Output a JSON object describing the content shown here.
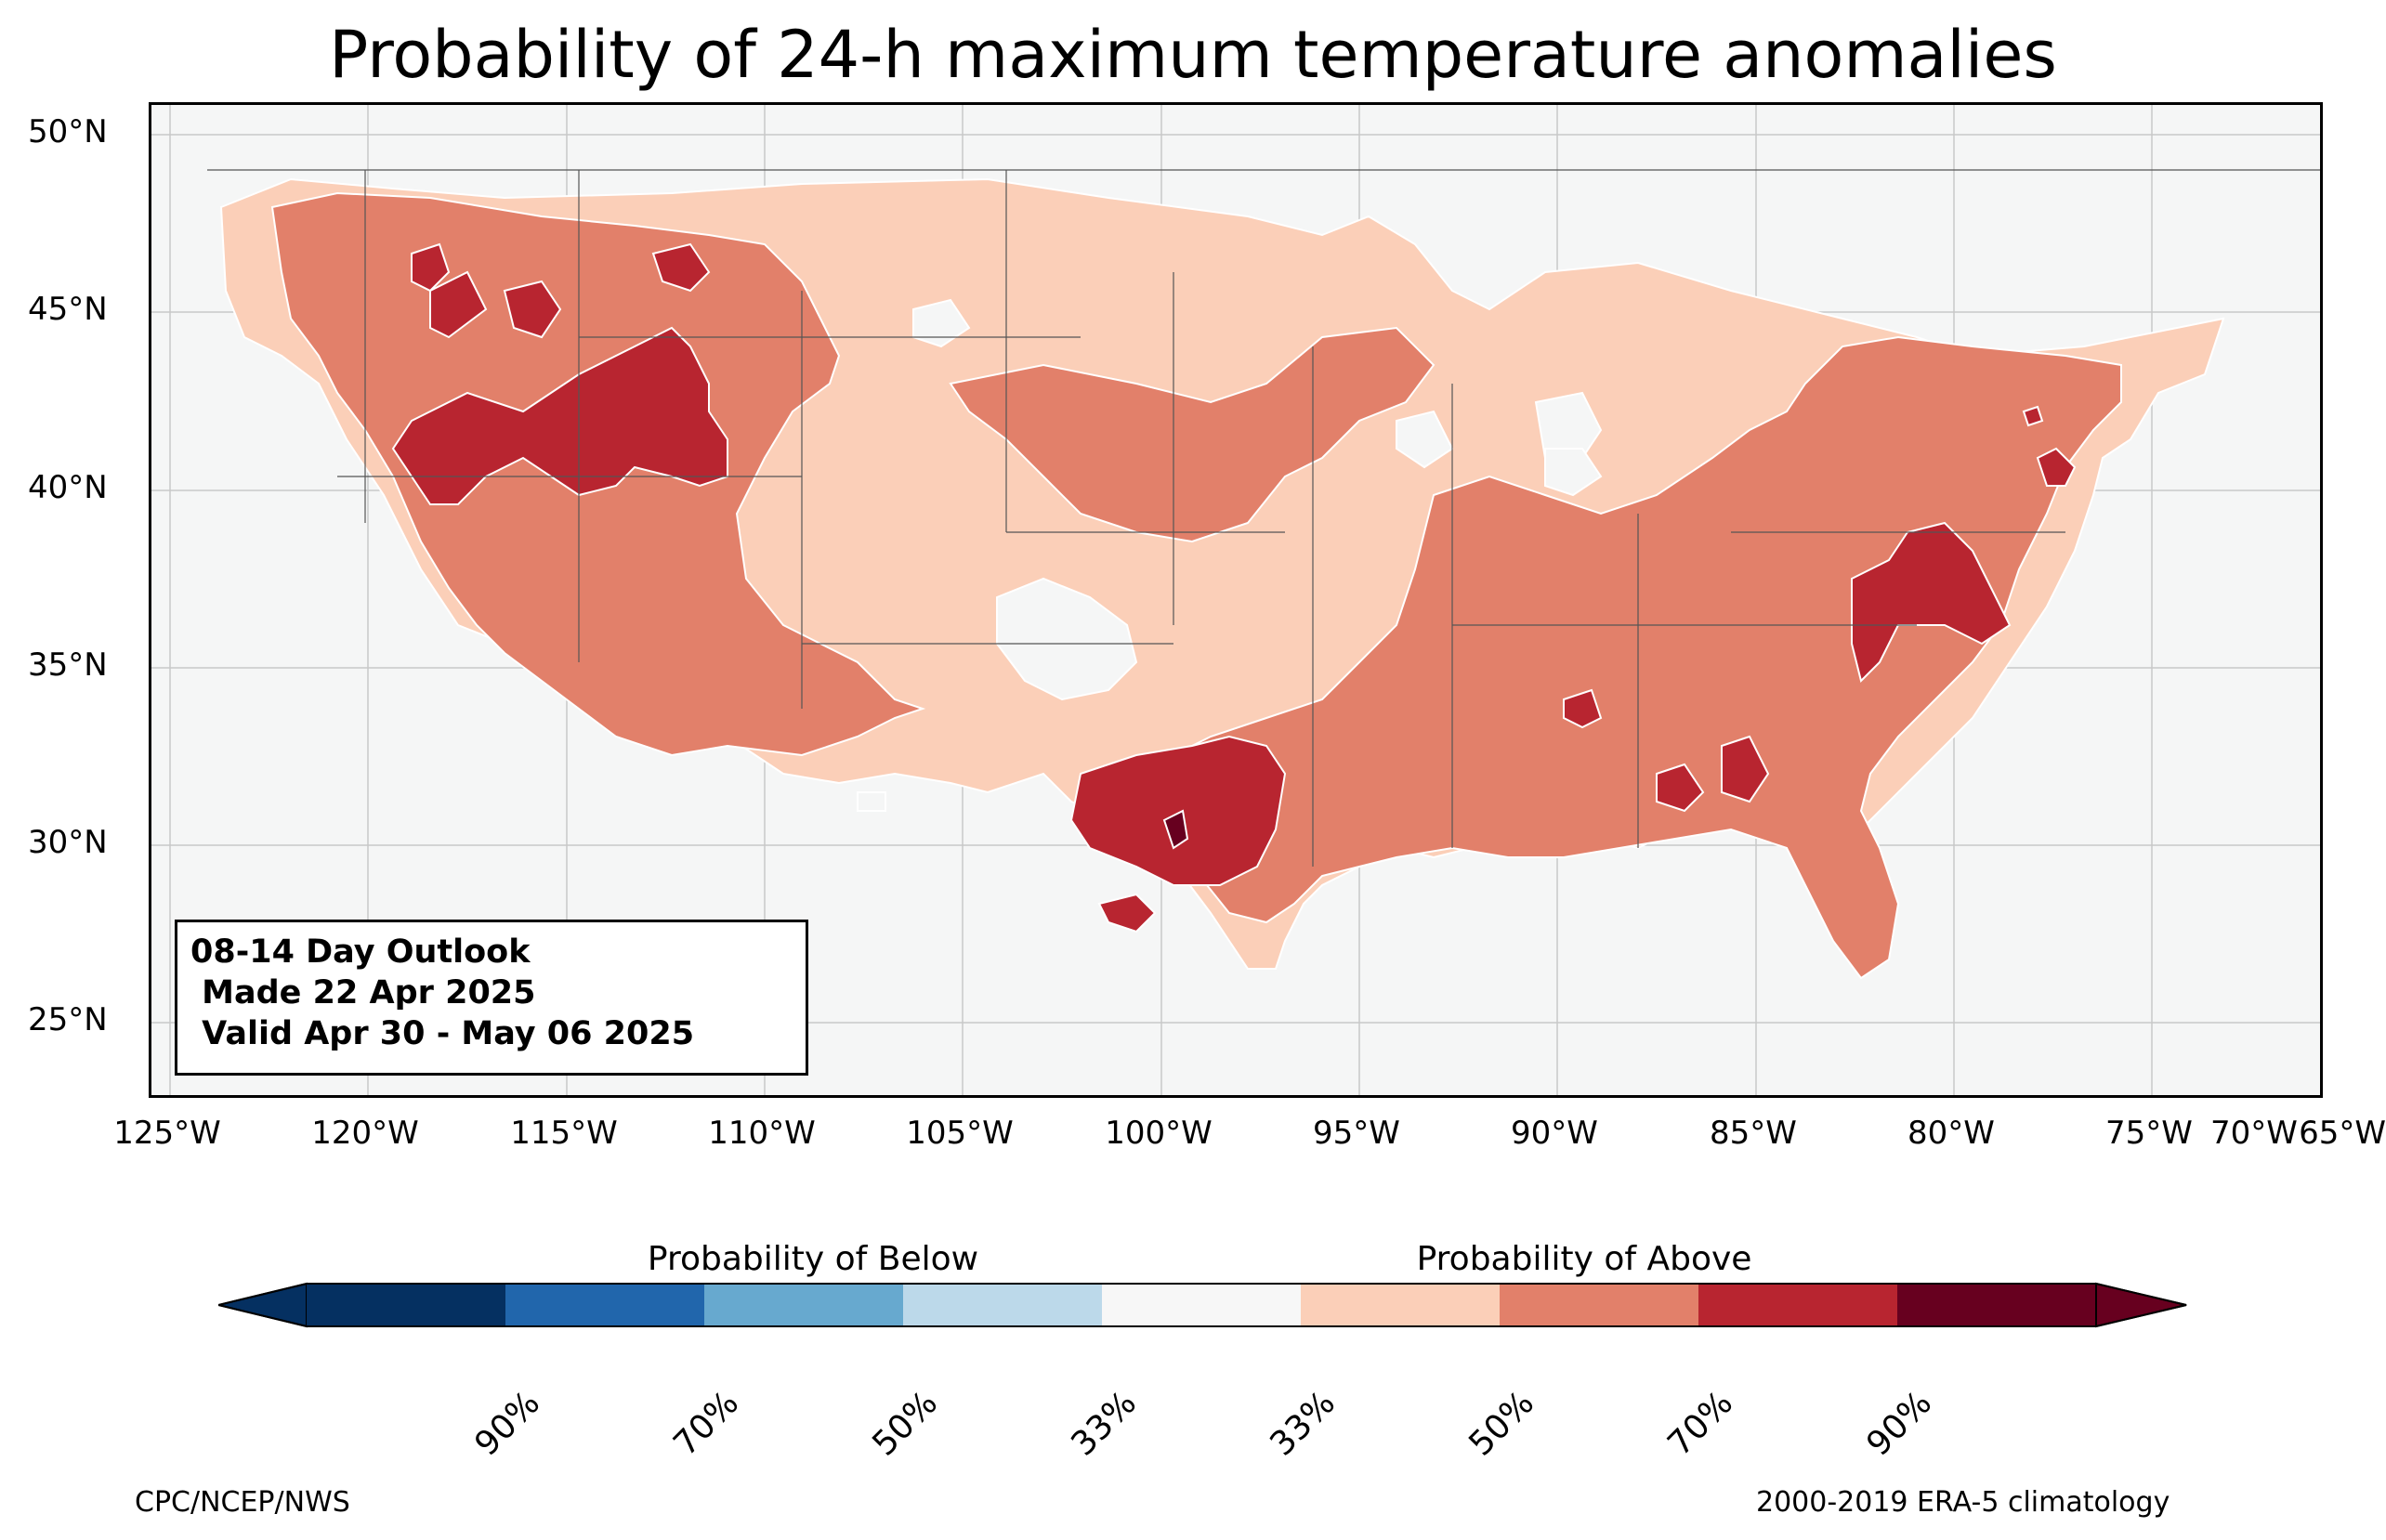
{
  "title": "Probability of 24-h maximum temperature anomalies",
  "outlook": {
    "line1": "08-14 Day Outlook",
    "line2": " Made 22 Apr 2025",
    "line3": " Valid Apr 30 - May 06 2025"
  },
  "lat_labels": [
    "50°N",
    "45°N",
    "40°N",
    "35°N",
    "30°N",
    "25°N"
  ],
  "lon_labels": [
    "125°W",
    "120°W",
    "115°W",
    "110°W",
    "105°W",
    "100°W",
    "95°W",
    "90°W",
    "85°W",
    "80°W",
    "75°W",
    "70°W",
    "65°W"
  ],
  "colorbar": {
    "below_title": "Probability of Below",
    "above_title": "Probability of Above",
    "ticks": [
      "90%",
      "70%",
      "50%",
      "33%",
      "33%",
      "50%",
      "70%",
      "90%"
    ],
    "colors": {
      "below_90": "#053061",
      "below_70": "#2166ac",
      "below_50": "#67a9cf",
      "below_33": "#bcd9ea",
      "near": "#f7f7f7",
      "above_33": "#fbcfb8",
      "above_50": "#e2806a",
      "above_70": "#b82530",
      "above_90": "#67001f"
    }
  },
  "footer": {
    "left": "CPC/NCEP/NWS",
    "right": "2000-2019 ERA-5 climatology"
  }
}
